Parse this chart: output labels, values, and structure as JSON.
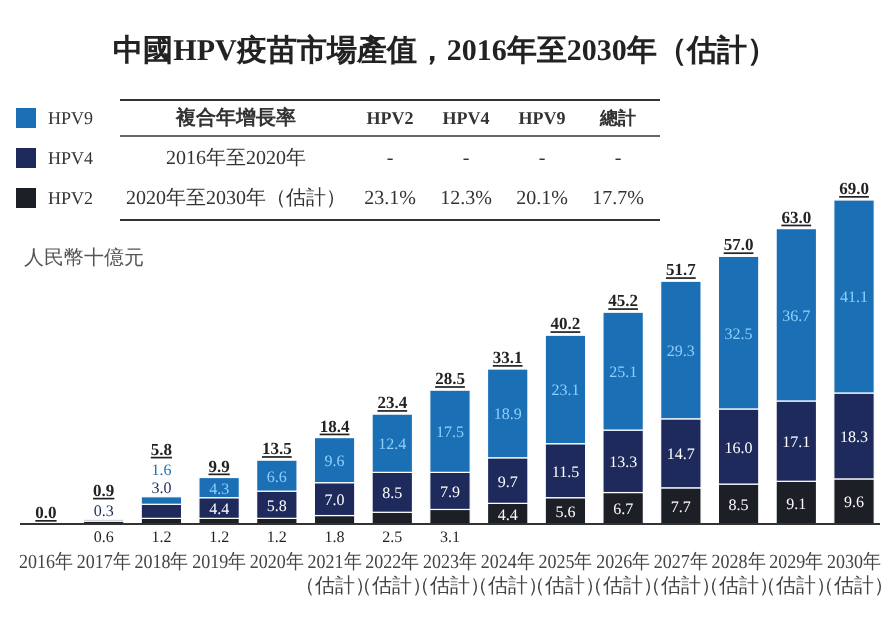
{
  "chart_data": {
    "type": "bar",
    "title": "中國HPV疫苗市場產值，2016年至2030年（估計）",
    "stacked": true,
    "legend": "top left",
    "categories": [
      "2016年",
      "2017年",
      "2018年",
      "2019年",
      "2020年",
      "2021年（估計）",
      "2022年（估計）",
      "2023年（估計）",
      "2024年（估計）",
      "2025年（估計）",
      "2026年（估計）",
      "2027年（估計）",
      "2028年（估計）",
      "2029年（估計）",
      "2030年（估計）"
    ],
    "series": [
      {
        "name": "HPV2",
        "color": "#1c1f26",
        "values": [
          null,
          0.6,
          1.2,
          1.2,
          1.2,
          1.8,
          2.5,
          3.1,
          4.4,
          5.6,
          6.7,
          7.7,
          8.5,
          9.1,
          9.6
        ],
        "value_labels": [
          null,
          "0.6",
          "1.2",
          "1.2",
          "1.2",
          "1.8",
          "2.5",
          "3.1",
          "4.4",
          "5.6",
          "6.7",
          "7.7",
          "8.5",
          "9.1",
          "9.6"
        ]
      },
      {
        "name": "HPV4",
        "color": "#1f2a5c",
        "values": [
          null,
          0.3,
          3.0,
          4.4,
          5.8,
          7.0,
          8.5,
          7.9,
          9.7,
          11.5,
          13.3,
          14.7,
          16.0,
          17.1,
          18.3
        ],
        "value_labels": [
          null,
          "0.3",
          "3.0",
          "4.4",
          "5.8",
          "7.0",
          "8.5",
          "7.9",
          "9.7",
          "11.5",
          "13.3",
          "14.7",
          "16.0",
          "17.1",
          "18.3"
        ]
      },
      {
        "name": "HPV9",
        "color": "#1a6fb5",
        "values": [
          null,
          null,
          1.6,
          4.3,
          6.6,
          9.6,
          12.4,
          17.5,
          18.9,
          23.1,
          25.1,
          29.3,
          32.5,
          36.7,
          41.1
        ],
        "value_labels": [
          null,
          null,
          "1.6",
          "4.3",
          "6.6",
          "9.6",
          "12.4",
          "17.5",
          "18.9",
          "23.1",
          "25.1",
          "29.3",
          "32.5",
          "36.7",
          "41.1"
        ]
      }
    ],
    "totals": [
      "0.0",
      "0.9",
      "5.8",
      "9.9",
      "13.5",
      "18.4",
      "23.4",
      "28.5",
      "33.1",
      "40.2",
      "45.2",
      "51.7",
      "57.0",
      "63.0",
      "69.0"
    ],
    "annotations": [
      "複合年增長率",
      "HPV2",
      "HPV4",
      "HPV9",
      "總計",
      "2016年至2020年",
      "-",
      "-",
      "-",
      "-",
      "2020年至2030年（估計）",
      "23.1%",
      "12.3%",
      "20.1%",
      "17.7%",
      "人民幣十億元"
    ]
  }
}
